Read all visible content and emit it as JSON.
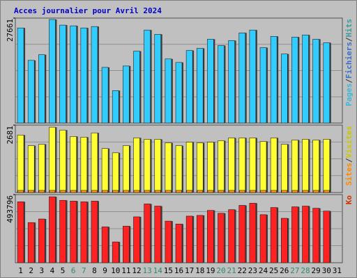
{
  "title": "Acces journalier pour Avril 2024",
  "chart_data": [
    {
      "type": "bar",
      "ylim": [
        0,
        27661
      ],
      "yticks": [
        27661
      ],
      "legend": [
        {
          "text": "Pages",
          "color": "#3fb8d8"
        },
        {
          "text": "/",
          "color": "#333333"
        },
        {
          "text": "Fichiers",
          "color": "#3a6fc4"
        },
        {
          "text": "/",
          "color": "#333333"
        },
        {
          "text": "Hits",
          "color": "#3d9a9a"
        }
      ],
      "series": [
        {
          "name": "Hits",
          "color": "#33ccff",
          "width": 9,
          "offset": 0,
          "values": [
            25060,
            16520,
            18010,
            27290,
            25810,
            25620,
            25060,
            25430,
            14670,
            8540,
            15040,
            18940,
            24510,
            23390,
            16890,
            15970,
            19120,
            19680,
            22090,
            20420,
            21720,
            23760,
            24510,
            19860,
            22840,
            18190,
            22650,
            23210,
            22090,
            21160,
            null
          ]
        }
      ]
    },
    {
      "type": "bar",
      "ylim": [
        0,
        2681
      ],
      "yticks": [
        2681
      ],
      "legend": [
        {
          "text": "Sites",
          "color": "#ff8800"
        },
        {
          "text": "/",
          "color": "#333333"
        },
        {
          "text": "Visites",
          "color": "#c8c800"
        }
      ],
      "series": [
        {
          "name": "Visites",
          "color": "#ffff33",
          "width": 9,
          "offset": 0,
          "values": [
            2286,
            1863,
            1919,
            2596,
            2483,
            2229,
            2201,
            2371,
            1750,
            1580,
            1863,
            2173,
            2117,
            2117,
            1976,
            1863,
            2004,
            1976,
            2004,
            2060,
            2173,
            2173,
            2173,
            2032,
            2173,
            1919,
            2088,
            2117,
            2088,
            2117,
            null
          ]
        },
        {
          "name": "Sites",
          "color": "#ff9900",
          "width": 8,
          "offset": 0,
          "values": [
            85,
            85,
            85,
            85,
            85,
            85,
            85,
            85,
            85,
            85,
            85,
            85,
            85,
            85,
            85,
            85,
            85,
            85,
            85,
            85,
            85,
            85,
            85,
            85,
            85,
            85,
            85,
            85,
            85,
            85,
            null
          ]
        }
      ]
    },
    {
      "type": "bar",
      "ylim": [
        0,
        493796
      ],
      "yticks": [
        493796
      ],
      "legend": [
        {
          "text": "Ko",
          "color": "#cc3300"
        }
      ],
      "series": [
        {
          "name": "Ko",
          "color": "#ff2222",
          "width": 9,
          "offset": 0,
          "values": [
            441800,
            291100,
            317100,
            478200,
            452200,
            447000,
            441800,
            447000,
            259900,
            150700,
            265100,
            332700,
            426200,
            410600,
            301500,
            280700,
            337900,
            343100,
            379500,
            358700,
            384700,
            415800,
            431400,
            348300,
            400200,
            322300,
            405400,
            410600,
            395000,
            374300,
            null
          ]
        }
      ],
      "categories": [
        "1",
        "2",
        "3",
        "4",
        "5",
        "6",
        "7",
        "8",
        "9",
        "10",
        "11",
        "12",
        "13",
        "14",
        "15",
        "16",
        "17",
        "18",
        "19",
        "20",
        "21",
        "22",
        "23",
        "24",
        "25",
        "26",
        "27",
        "28",
        "29",
        "30",
        "31"
      ],
      "category_colors": [
        "#000000",
        "#000000",
        "#000000",
        "#000000",
        "#000000",
        "#2e8b6e",
        "#2e8b6e",
        "#000000",
        "#000000",
        "#000000",
        "#000000",
        "#000000",
        "#2e8b6e",
        "#2e8b6e",
        "#000000",
        "#000000",
        "#000000",
        "#000000",
        "#000000",
        "#2e8b6e",
        "#2e8b6e",
        "#000000",
        "#000000",
        "#000000",
        "#000000",
        "#000000",
        "#2e8b6e",
        "#2e8b6e",
        "#000000",
        "#000000",
        "#000000"
      ]
    }
  ]
}
